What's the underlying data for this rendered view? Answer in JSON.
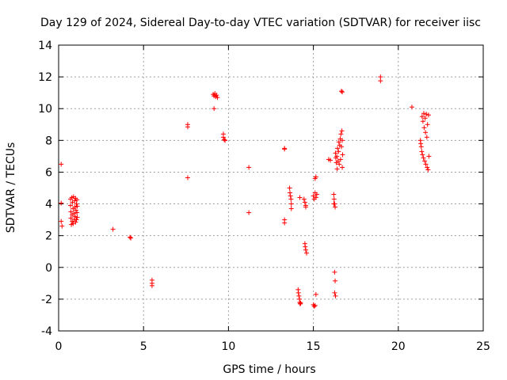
{
  "chart_data": {
    "type": "scatter",
    "title": "Day 129 of 2024, Sidereal Day-to-day VTEC variation (SDTVAR) for receiver iisc",
    "xlabel": "GPS time / hours",
    "ylabel": "SDTVAR / TECUs",
    "xlim": [
      0,
      25
    ],
    "ylim": [
      -4,
      14
    ],
    "xticks": [
      0,
      5,
      10,
      15,
      20,
      25
    ],
    "yticks": [
      -4,
      -2,
      0,
      2,
      4,
      6,
      8,
      10,
      12,
      14
    ],
    "xtick_labels": [
      "0",
      "5",
      "10",
      "15",
      "20",
      "25"
    ],
    "ytick_labels": [
      "-4",
      "-2",
      "0",
      "2",
      "4",
      "6",
      "8",
      "10",
      "12",
      "14"
    ],
    "grid": true,
    "marker": "+",
    "color": "#ff0000",
    "series": [
      {
        "name": "SDTVAR",
        "points": [
          [
            0.15,
            6.5
          ],
          [
            0.15,
            4.05
          ],
          [
            0.15,
            2.9
          ],
          [
            0.2,
            2.6
          ],
          [
            0.7,
            4.3
          ],
          [
            0.7,
            3.9
          ],
          [
            0.72,
            3.5
          ],
          [
            0.72,
            3.1
          ],
          [
            0.75,
            2.7
          ],
          [
            0.78,
            4.4
          ],
          [
            0.8,
            3.3
          ],
          [
            0.8,
            2.9
          ],
          [
            0.82,
            4.1
          ],
          [
            0.85,
            3.7
          ],
          [
            0.85,
            2.75
          ],
          [
            0.88,
            4.45
          ],
          [
            0.9,
            3.4
          ],
          [
            0.92,
            3.0
          ],
          [
            0.95,
            4.2
          ],
          [
            0.95,
            3.8
          ],
          [
            0.98,
            3.2
          ],
          [
            1.0,
            2.85
          ],
          [
            1.0,
            4.35
          ],
          [
            1.02,
            3.6
          ],
          [
            1.05,
            4.0
          ],
          [
            1.05,
            3.0
          ],
          [
            1.08,
            4.25
          ],
          [
            1.08,
            3.45
          ],
          [
            1.1,
            3.85
          ],
          [
            1.1,
            3.15
          ],
          [
            3.2,
            2.4
          ],
          [
            4.2,
            1.9
          ],
          [
            4.25,
            1.85
          ],
          [
            5.5,
            -0.8
          ],
          [
            5.5,
            -1.0
          ],
          [
            5.5,
            -1.15
          ],
          [
            7.6,
            9.0
          ],
          [
            7.6,
            8.85
          ],
          [
            7.6,
            5.65
          ],
          [
            9.1,
            10.9
          ],
          [
            9.15,
            10.8
          ],
          [
            9.2,
            10.95
          ],
          [
            9.25,
            10.75
          ],
          [
            9.3,
            10.85
          ],
          [
            9.35,
            10.7
          ],
          [
            9.15,
            10.0
          ],
          [
            9.7,
            8.4
          ],
          [
            9.7,
            8.2
          ],
          [
            9.75,
            8.05
          ],
          [
            9.8,
            8.0
          ],
          [
            11.2,
            6.3
          ],
          [
            11.2,
            3.45
          ],
          [
            13.3,
            7.5
          ],
          [
            13.3,
            7.45
          ],
          [
            13.3,
            3.0
          ],
          [
            13.3,
            2.8
          ],
          [
            13.6,
            5.0
          ],
          [
            13.62,
            4.7
          ],
          [
            13.65,
            4.5
          ],
          [
            13.68,
            4.3
          ],
          [
            13.7,
            4.0
          ],
          [
            13.7,
            3.7
          ],
          [
            14.1,
            -1.4
          ],
          [
            14.12,
            -1.6
          ],
          [
            14.15,
            -1.8
          ],
          [
            14.18,
            -2.0
          ],
          [
            14.2,
            -2.2
          ],
          [
            14.22,
            -2.3
          ],
          [
            14.25,
            -2.25
          ],
          [
            14.2,
            4.4
          ],
          [
            14.45,
            4.3
          ],
          [
            14.5,
            4.1
          ],
          [
            14.55,
            3.9
          ],
          [
            14.55,
            3.8
          ],
          [
            14.5,
            1.5
          ],
          [
            14.52,
            1.3
          ],
          [
            14.55,
            1.1
          ],
          [
            14.6,
            0.9
          ],
          [
            15.0,
            4.5
          ],
          [
            15.05,
            4.3
          ],
          [
            15.1,
            4.7
          ],
          [
            15.15,
            4.4
          ],
          [
            15.2,
            4.6
          ],
          [
            15.1,
            5.6
          ],
          [
            15.15,
            5.7
          ],
          [
            15.0,
            -2.35
          ],
          [
            15.05,
            -2.45
          ],
          [
            15.1,
            -2.4
          ],
          [
            15.15,
            -1.7
          ],
          [
            15.9,
            6.8
          ],
          [
            16.0,
            6.75
          ],
          [
            16.2,
            4.6
          ],
          [
            16.22,
            4.3
          ],
          [
            16.25,
            4.0
          ],
          [
            16.28,
            3.8
          ],
          [
            16.2,
            4.0
          ],
          [
            16.25,
            -0.3
          ],
          [
            16.28,
            -0.85
          ],
          [
            16.25,
            -1.6
          ],
          [
            16.3,
            -1.8
          ],
          [
            16.3,
            7.2
          ],
          [
            16.32,
            6.9
          ],
          [
            16.35,
            6.6
          ],
          [
            16.38,
            7.0
          ],
          [
            16.4,
            6.2
          ],
          [
            16.42,
            7.5
          ],
          [
            16.45,
            6.7
          ],
          [
            16.48,
            7.3
          ],
          [
            16.5,
            7.9
          ],
          [
            16.52,
            6.5
          ],
          [
            16.55,
            7.7
          ],
          [
            16.58,
            8.1
          ],
          [
            16.6,
            6.8
          ],
          [
            16.62,
            8.4
          ],
          [
            16.65,
            7.6
          ],
          [
            16.68,
            8.6
          ],
          [
            16.7,
            6.3
          ],
          [
            16.7,
            8.0
          ],
          [
            16.72,
            7.1
          ],
          [
            16.65,
            11.1
          ],
          [
            16.7,
            11.05
          ],
          [
            18.95,
            12.0
          ],
          [
            18.95,
            11.75
          ],
          [
            20.8,
            10.1
          ],
          [
            21.3,
            8.0
          ],
          [
            21.32,
            7.8
          ],
          [
            21.35,
            7.6
          ],
          [
            21.38,
            7.3
          ],
          [
            21.4,
            9.5
          ],
          [
            21.42,
            7.1
          ],
          [
            21.45,
            9.2
          ],
          [
            21.48,
            6.9
          ],
          [
            21.5,
            9.7
          ],
          [
            21.52,
            8.8
          ],
          [
            21.55,
            6.7
          ],
          [
            21.58,
            9.4
          ],
          [
            21.6,
            8.5
          ],
          [
            21.62,
            6.5
          ],
          [
            21.65,
            9.65
          ],
          [
            21.68,
            8.2
          ],
          [
            21.7,
            6.3
          ],
          [
            21.72,
            9.0
          ],
          [
            21.75,
            6.15
          ],
          [
            21.78,
            9.6
          ],
          [
            21.8,
            7.0
          ]
        ]
      }
    ]
  }
}
